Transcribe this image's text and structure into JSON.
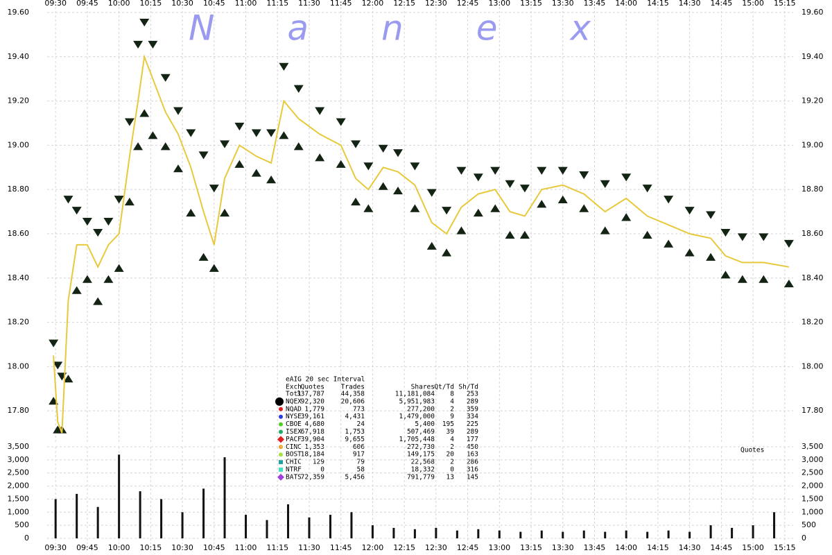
{
  "chart_data": [
    {
      "type": "price",
      "watermark": "Nanex",
      "xlim": [
        "09:26",
        "15:19"
      ],
      "xticks": [
        "09:30",
        "09:45",
        "10:00",
        "10:15",
        "10:30",
        "10:45",
        "11:00",
        "11:15",
        "11:30",
        "11:45",
        "12:00",
        "12:15",
        "12:30",
        "12:45",
        "13:00",
        "13:15",
        "13:30",
        "13:45",
        "14:00",
        "14:15",
        "14:30",
        "14:45",
        "15:00",
        "15:15"
      ],
      "ylim": [
        17.65,
        19.6
      ],
      "yticks": [
        {
          "value": 17.8,
          "label": "17.80"
        },
        {
          "value": 18.0,
          "label": "18.00"
        },
        {
          "value": 18.2,
          "label": "18.20"
        },
        {
          "value": 18.4,
          "label": "18.40"
        },
        {
          "value": 18.6,
          "label": "18.60"
        },
        {
          "value": 18.8,
          "label": "18.80"
        },
        {
          "value": 19.0,
          "label": "19.00"
        },
        {
          "value": 19.2,
          "label": "19.20"
        },
        {
          "value": 19.4,
          "label": "19.40"
        },
        {
          "value": 19.6,
          "label": "19.60"
        }
      ],
      "grid": true,
      "x": [
        "09:29",
        "09:31",
        "09:33",
        "09:36",
        "09:40",
        "09:45",
        "09:50",
        "09:55",
        "10:00",
        "10:05",
        "10:09",
        "10:12",
        "10:16",
        "10:22",
        "10:28",
        "10:34",
        "10:40",
        "10:45",
        "10:50",
        "10:57",
        "11:05",
        "11:12",
        "11:18",
        "11:25",
        "11:35",
        "11:45",
        "11:52",
        "11:58",
        "12:05",
        "12:12",
        "12:20",
        "12:28",
        "12:35",
        "12:42",
        "12:50",
        "12:58",
        "13:05",
        "13:12",
        "13:20",
        "13:30",
        "13:40",
        "13:50",
        "14:00",
        "14:10",
        "14:20",
        "14:30",
        "14:40",
        "14:47",
        "14:55",
        "15:05",
        "15:17"
      ],
      "series": [
        {
          "marker": "triangle-down",
          "color": "#142414",
          "values": [
            18.1,
            18.0,
            17.95,
            18.75,
            18.7,
            18.65,
            18.6,
            18.65,
            18.75,
            19.1,
            19.45,
            19.55,
            19.45,
            19.3,
            19.15,
            19.05,
            18.95,
            18.8,
            19.0,
            19.08,
            19.05,
            19.05,
            19.35,
            19.25,
            19.15,
            19.1,
            19.0,
            18.9,
            18.98,
            18.96,
            18.9,
            18.78,
            18.7,
            18.88,
            18.85,
            18.88,
            18.82,
            18.8,
            18.88,
            18.88,
            18.86,
            18.82,
            18.85,
            18.8,
            18.75,
            18.7,
            18.68,
            18.6,
            18.58,
            18.58,
            18.55
          ]
        },
        {
          "marker": "triangle-up",
          "color": "#142414",
          "values": [
            17.85,
            17.72,
            17.72,
            17.95,
            18.35,
            18.4,
            18.3,
            18.4,
            18.45,
            18.75,
            19.0,
            19.15,
            19.05,
            19.0,
            18.9,
            18.7,
            18.5,
            18.45,
            18.7,
            18.92,
            18.88,
            18.85,
            19.05,
            19.0,
            18.95,
            18.92,
            18.75,
            18.72,
            18.82,
            18.8,
            18.72,
            18.55,
            18.52,
            18.62,
            18.7,
            18.72,
            18.6,
            18.6,
            18.74,
            18.76,
            18.72,
            18.62,
            18.68,
            18.6,
            18.56,
            18.52,
            18.5,
            18.42,
            18.4,
            18.4,
            18.38
          ]
        },
        {
          "marker": "line",
          "color": "#e8c93c",
          "values": [
            18.05,
            17.75,
            17.7,
            18.3,
            18.55,
            18.55,
            18.45,
            18.55,
            18.6,
            18.95,
            19.2,
            19.4,
            19.3,
            19.15,
            19.05,
            18.9,
            18.7,
            18.55,
            18.85,
            19.0,
            18.95,
            18.92,
            19.2,
            19.12,
            19.05,
            19.0,
            18.85,
            18.8,
            18.9,
            18.88,
            18.82,
            18.65,
            18.6,
            18.72,
            18.78,
            18.8,
            18.7,
            18.68,
            18.8,
            18.82,
            18.78,
            18.7,
            18.76,
            18.68,
            18.64,
            18.6,
            18.58,
            18.5,
            18.47,
            18.47,
            18.45
          ]
        }
      ],
      "stats_table": {
        "title": "eAIG 20 sec Interval",
        "columns": [
          "Exch",
          "Quotes",
          "Trades",
          "Shares",
          "Qt/Td",
          "Sh/Td"
        ],
        "rows": [
          {
            "cells": [
              "Totl",
              "337,787",
              "44,358",
              "11,181,084",
              "8",
              "253"
            ]
          },
          {
            "marker": "big-circle",
            "color": "#000000",
            "cells": [
              "NQEX",
              "92,320",
              "20,606",
              "5,951,983",
              "4",
              "289"
            ]
          },
          {
            "marker": "circle",
            "color": "#e02020",
            "cells": [
              "NQAD",
              "1,779",
              "773",
              "277,200",
              "2",
              "359"
            ]
          },
          {
            "marker": "circle",
            "color": "#2a3adf",
            "cells": [
              "NYSE",
              "39,161",
              "4,431",
              "1,479,000",
              "9",
              "334"
            ]
          },
          {
            "marker": "circle",
            "color": "#55cc22",
            "cells": [
              "CBOE",
              "4,680",
              "24",
              "5,400",
              "195",
              "225"
            ]
          },
          {
            "marker": "circle",
            "color": "#22aa66",
            "cells": [
              "ISEX",
              "67,918",
              "1,753",
              "507,469",
              "39",
              "289"
            ]
          },
          {
            "marker": "diamond",
            "color": "#e02020",
            "cells": [
              "PACF",
              "39,904",
              "9,655",
              "1,705,448",
              "4",
              "177"
            ]
          },
          {
            "marker": "circle",
            "color": "#f0a020",
            "cells": [
              "CINC",
              "1,353",
              "606",
              "272,730",
              "2",
              "450"
            ]
          },
          {
            "marker": "circle",
            "color": "#a8e040",
            "cells": [
              "BOST",
              "18,184",
              "917",
              "149,175",
              "20",
              "163"
            ]
          },
          {
            "marker": "square",
            "color": "#20a0a0",
            "cells": [
              "CHIC",
              "129",
              "79",
              "22,568",
              "2",
              "286"
            ]
          },
          {
            "marker": "square",
            "color": "#40e0c0",
            "cells": [
              "NTRF",
              "0",
              "58",
              "18,332",
              "0",
              "316"
            ]
          },
          {
            "marker": "diamond",
            "color": "#a040e0",
            "cells": [
              "BATS",
              "72,359",
              "5,456",
              "791,779",
              "13",
              "145"
            ]
          }
        ]
      }
    },
    {
      "type": "volume",
      "label": "Quotes",
      "color": "#111111",
      "xlim": [
        "09:26",
        "15:19"
      ],
      "xticks": [
        "09:30",
        "09:45",
        "10:00",
        "10:15",
        "10:30",
        "10:45",
        "11:00",
        "11:15",
        "11:30",
        "11:45",
        "12:00",
        "12:15",
        "12:30",
        "12:45",
        "13:00",
        "13:15",
        "13:30",
        "13:45",
        "14:00",
        "14:15",
        "14:30",
        "14:45",
        "15:00",
        "15:15"
      ],
      "ylim": [
        0,
        3500
      ],
      "yticks": [
        0,
        500,
        {
          "value": 1000,
          "label": "1,000"
        },
        {
          "value": 1500,
          "label": "1,500"
        },
        {
          "value": 2000,
          "label": "2,000"
        },
        {
          "value": 2500,
          "label": "2,500"
        },
        {
          "value": 3000,
          "label": "3,000"
        },
        {
          "value": 3500,
          "label": "3,500"
        }
      ],
      "x": [
        "09:30",
        "09:40",
        "09:50",
        "10:00",
        "10:10",
        "10:20",
        "10:30",
        "10:40",
        "10:50",
        "11:00",
        "11:10",
        "11:20",
        "11:30",
        "11:40",
        "11:50",
        "12:00",
        "12:10",
        "12:20",
        "12:30",
        "12:40",
        "12:50",
        "13:00",
        "13:10",
        "13:20",
        "13:30",
        "13:40",
        "13:50",
        "14:00",
        "14:10",
        "14:20",
        "14:30",
        "14:40",
        "14:50",
        "15:00",
        "15:10"
      ],
      "values": [
        1500,
        1700,
        1200,
        3200,
        1800,
        1500,
        1000,
        1900,
        3100,
        900,
        700,
        1300,
        800,
        900,
        1000,
        500,
        400,
        350,
        400,
        300,
        350,
        300,
        250,
        300,
        250,
        300,
        250,
        300,
        250,
        300,
        250,
        500,
        400,
        500,
        1000
      ]
    }
  ]
}
